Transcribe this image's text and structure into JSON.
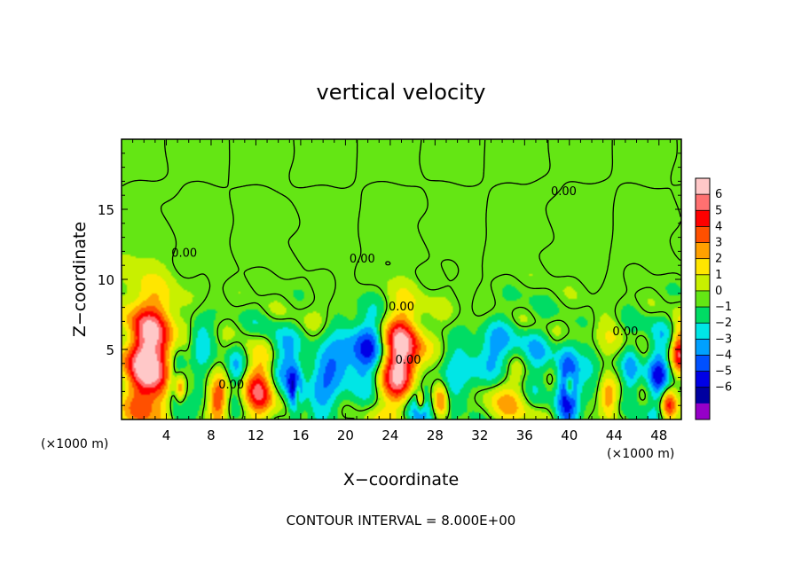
{
  "chart_data": {
    "type": "heatmap",
    "title": "vertical velocity",
    "xlabel": "X−coordinate",
    "ylabel": "Z−coordinate",
    "x_unit_left": "(×1000 m)",
    "x_unit_right": "(×1000 m)",
    "footer": "CONTOUR INTERVAL = 8.000E+00",
    "xlim": [
      0,
      50
    ],
    "ylim": [
      0,
      20
    ],
    "x_ticks": [
      4,
      8,
      12,
      16,
      20,
      24,
      28,
      32,
      36,
      40,
      44,
      48
    ],
    "x_tick_labels": [
      "4",
      "8",
      "12",
      "16",
      "20",
      "24",
      "28",
      "32",
      "36",
      "40",
      "44",
      "48"
    ],
    "y_ticks": [
      5,
      10,
      15
    ],
    "y_tick_labels": [
      "5",
      "10",
      "15"
    ],
    "contour_labels": [
      {
        "text": "0.00",
        "x": 5.6,
        "y": 11.6
      },
      {
        "text": "0.00",
        "x": 25.0,
        "y": 7.8
      },
      {
        "text": "0.00",
        "x": 39.5,
        "y": 16.0
      },
      {
        "text": "0.00",
        "x": 9.8,
        "y": 2.2
      },
      {
        "text": "0.00",
        "x": 21.5,
        "y": 11.2
      },
      {
        "text": "0.00",
        "x": 45.0,
        "y": 6.0
      },
      {
        "text": "0.00",
        "x": 25.6,
        "y": 4.0
      }
    ],
    "features": [
      {
        "x": 2.5,
        "z": 4.5,
        "w": 8,
        "sx": 1.6,
        "sz": 3.0
      },
      {
        "x": 5.0,
        "z": 2.5,
        "w": -4.5,
        "sx": 0.6,
        "sz": 2.0
      },
      {
        "x": 5.2,
        "z": 2.2,
        "w": 5,
        "sx": 0.35,
        "sz": 0.8
      },
      {
        "x": 7.0,
        "z": 5.5,
        "w": -2.5,
        "sx": 0.8,
        "sz": 1.5
      },
      {
        "x": 8.6,
        "z": 1.4,
        "w": 4.5,
        "sx": 0.6,
        "sz": 1.1
      },
      {
        "x": 10.2,
        "z": 3.5,
        "w": -2.5,
        "sx": 0.6,
        "sz": 1.4
      },
      {
        "x": 12.2,
        "z": 2.4,
        "w": 5,
        "sx": 1.0,
        "sz": 1.7
      },
      {
        "x": 14.5,
        "z": 4.2,
        "w": -3,
        "sx": 1.0,
        "sz": 1.4
      },
      {
        "x": 15.5,
        "z": 2.0,
        "w": -5,
        "sx": 0.45,
        "sz": 1.2
      },
      {
        "x": 15.7,
        "z": 1.9,
        "w": 4,
        "sx": 0.2,
        "sz": 0.6
      },
      {
        "x": 18.0,
        "z": 2.5,
        "w": -2.5,
        "sx": 1.2,
        "sz": 1.8
      },
      {
        "x": 20.0,
        "z": 4.5,
        "w": -3,
        "sx": 1.5,
        "sz": 1.5
      },
      {
        "x": 22.2,
        "z": 5.2,
        "w": -3.5,
        "sx": 1.0,
        "sz": 2.0
      },
      {
        "x": 25.0,
        "z": 4.2,
        "w": 8,
        "sx": 1.3,
        "sz": 2.5
      },
      {
        "x": 26.5,
        "z": 1.2,
        "w": -5,
        "sx": 0.9,
        "sz": 1.4
      },
      {
        "x": 26.7,
        "z": 1.3,
        "w": 4,
        "sx": 0.25,
        "sz": 0.5
      },
      {
        "x": 28.5,
        "z": 1.3,
        "w": 4.5,
        "sx": 0.5,
        "sz": 1.0
      },
      {
        "x": 30.5,
        "z": 3.2,
        "w": -2.5,
        "sx": 1.5,
        "sz": 1.8
      },
      {
        "x": 33.5,
        "z": 4.5,
        "w": -3,
        "sx": 1.2,
        "sz": 1.6
      },
      {
        "x": 34.5,
        "z": 2.0,
        "w": 2.6,
        "sx": 2.2,
        "sz": 1.5
      },
      {
        "x": 37.0,
        "z": 3.5,
        "w": -2.5,
        "sx": 1.0,
        "sz": 2.0
      },
      {
        "x": 39.8,
        "z": 2.3,
        "w": -5,
        "sx": 0.7,
        "sz": 2.2
      },
      {
        "x": 40.0,
        "z": 2.4,
        "w": 4,
        "sx": 0.25,
        "sz": 0.6
      },
      {
        "x": 42.0,
        "z": 3.5,
        "w": -2,
        "sx": 0.8,
        "sz": 1.5
      },
      {
        "x": 43.5,
        "z": 1.5,
        "w": 4,
        "sx": 0.6,
        "sz": 1.1
      },
      {
        "x": 45.5,
        "z": 3.0,
        "w": -3,
        "sx": 0.6,
        "sz": 1.8
      },
      {
        "x": 44.0,
        "z": 5.5,
        "w": 1.5,
        "sx": 1.0,
        "sz": 1.0
      },
      {
        "x": 48.0,
        "z": 3.0,
        "w": -4,
        "sx": 0.7,
        "sz": 2.0
      },
      {
        "x": 48.8,
        "z": 1.1,
        "w": 4.5,
        "sx": 0.5,
        "sz": 0.9
      },
      {
        "x": 49.8,
        "z": 5.0,
        "w": 5,
        "sx": 0.5,
        "sz": 1.2
      }
    ],
    "colorbar": {
      "labels": [
        "6",
        "5",
        "4",
        "3",
        "2",
        "1",
        "0",
        "−1",
        "−2",
        "−3",
        "−4",
        "−5",
        "−6"
      ],
      "colors": [
        "#ffc8c8",
        "#ff7070",
        "#ff0000",
        "#ff5000",
        "#ffa000",
        "#ffe600",
        "#c8f000",
        "#64e614",
        "#00dc64",
        "#00e6e6",
        "#00a0ff",
        "#0050ff",
        "#0000e6",
        "#0000a0",
        "#9600c8"
      ]
    }
  }
}
